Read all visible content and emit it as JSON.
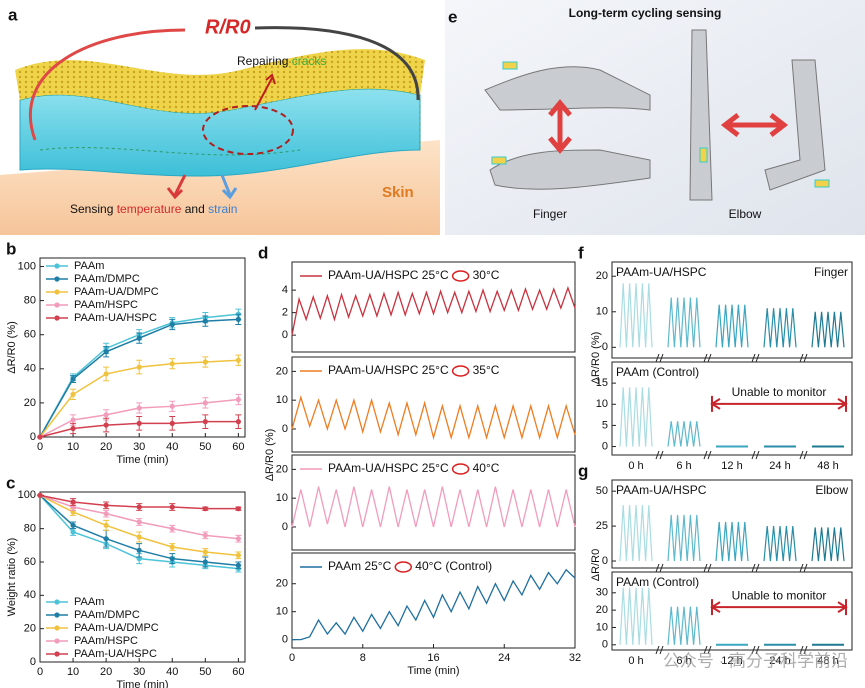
{
  "panel_a": {
    "letter": "a",
    "ratio": "R/R0",
    "repair": [
      "Repairing ",
      "cracks"
    ],
    "sensing": [
      "Sensing ",
      "temperature",
      " and ",
      "strain"
    ],
    "skin": "Skin"
  },
  "panel_e": {
    "letter": "e",
    "title": "Long-term cycling sensing",
    "finger": "Finger",
    "elbow": "Elbow"
  },
  "watermark": "公众号 · 高分子科学前沿",
  "chart_data": [
    {
      "type": "line",
      "panel": "b",
      "xlabel": "Time (min)",
      "ylabel": "ΔR/R0 (%)",
      "x": [
        0,
        10,
        20,
        30,
        40,
        50,
        60
      ],
      "xlim": [
        0,
        62
      ],
      "xticks": [
        0,
        10,
        20,
        30,
        40,
        50,
        60
      ],
      "ylim": [
        0,
        105
      ],
      "yticks": [
        0,
        20,
        40,
        60,
        80,
        100
      ],
      "legend": "upper left",
      "series": [
        {
          "name": "PAAm",
          "color": "#4cc3d6",
          "values": [
            0,
            35,
            52,
            60,
            67,
            70,
            72
          ],
          "errors": [
            0,
            2,
            3,
            3,
            3,
            3,
            3
          ]
        },
        {
          "name": "PAAm/DMPC",
          "color": "#1f7ea6",
          "values": [
            0,
            34,
            50,
            58,
            66,
            68,
            69
          ],
          "errors": [
            0,
            2,
            3,
            3,
            3,
            3,
            3
          ]
        },
        {
          "name": "PAAm-UA/DMPC",
          "color": "#f0c23e",
          "values": [
            0,
            25,
            37,
            41,
            43,
            44,
            45
          ],
          "errors": [
            0,
            3,
            4,
            4,
            3,
            3,
            3
          ]
        },
        {
          "name": "PAAm/HSPC",
          "color": "#f29cbc",
          "values": [
            0,
            10,
            13,
            17,
            18,
            20,
            22
          ],
          "errors": [
            0,
            3,
            3,
            3,
            3,
            3,
            3
          ]
        },
        {
          "name": "PAAm-UA/HSPC",
          "color": "#d2404f",
          "values": [
            0,
            5,
            7,
            8,
            8,
            9,
            9
          ],
          "errors": [
            0,
            3,
            4,
            4,
            4,
            4,
            4
          ]
        }
      ]
    },
    {
      "type": "line",
      "panel": "c",
      "xlabel": "Time (min)",
      "ylabel": "Weight ratio (%)",
      "x": [
        0,
        10,
        20,
        30,
        40,
        50,
        60
      ],
      "xlim": [
        0,
        62
      ],
      "xticks": [
        0,
        10,
        20,
        30,
        40,
        50,
        60
      ],
      "ylim": [
        0,
        102
      ],
      "yticks": [
        0,
        20,
        40,
        60,
        80,
        100
      ],
      "legend": "lower left",
      "series": [
        {
          "name": "PAAm",
          "color": "#4cc3d6",
          "values": [
            100,
            78,
            71,
            62,
            60,
            58,
            56
          ],
          "errors": [
            0,
            2,
            3,
            3,
            3,
            2,
            2
          ]
        },
        {
          "name": "PAAm/DMPC",
          "color": "#1f7ea6",
          "values": [
            100,
            82,
            74,
            67,
            62,
            60,
            58
          ],
          "errors": [
            0,
            2,
            5,
            4,
            3,
            3,
            2
          ]
        },
        {
          "name": "PAAm-UA/DMPC",
          "color": "#f0c23e",
          "values": [
            100,
            90,
            82,
            75,
            69,
            66,
            64
          ],
          "errors": [
            0,
            2,
            3,
            3,
            2,
            2,
            2
          ]
        },
        {
          "name": "PAAm/HSPC",
          "color": "#f29cbc",
          "values": [
            100,
            93,
            89,
            84,
            80,
            76,
            74
          ],
          "errors": [
            0,
            2,
            2,
            2,
            2,
            2,
            2
          ]
        },
        {
          "name": "PAAm-UA/HSPC",
          "color": "#d2404f",
          "values": [
            100,
            96,
            94,
            93,
            93,
            92,
            92
          ],
          "errors": [
            0,
            2,
            2,
            2,
            2,
            1,
            1
          ]
        }
      ]
    },
    {
      "type": "line",
      "panel": "d",
      "ylabel": "ΔR/R0 (%)",
      "xlim": [
        0,
        32
      ],
      "ylim": [
        -1.5,
        6.5
      ],
      "yticks": [
        0,
        2,
        4
      ],
      "annotation": "30°C",
      "x": [
        0,
        0.8,
        1.6,
        2.4,
        3.2,
        4,
        4.8,
        5.6,
        6.4,
        7.2,
        8,
        8.8,
        9.6,
        10.4,
        11.2,
        12,
        12.8,
        13.6,
        14.4,
        15.2,
        16,
        16.8,
        17.6,
        18.4,
        19.2,
        20,
        20.8,
        21.6,
        22.4,
        23.2,
        24,
        24.8,
        25.6,
        26.4,
        27.2,
        28,
        28.8,
        29.6,
        30.4,
        31.2,
        32
      ],
      "series": [
        {
          "name": "PAAm-UA/HSPC 25°C",
          "color": "#c8333f",
          "values": [
            0,
            3.2,
            1.4,
            3.4,
            1.5,
            3.5,
            1.4,
            3.6,
            1.6,
            3.5,
            1.7,
            3.6,
            1.7,
            3.7,
            1.8,
            3.8,
            1.8,
            3.7,
            1.9,
            3.8,
            1.9,
            3.9,
            2,
            3.8,
            2,
            3.9,
            2.1,
            4,
            2.1,
            3.9,
            2.2,
            4,
            2.2,
            4.1,
            2.3,
            4,
            2.3,
            4.1,
            2.4,
            4.2,
            2.4
          ]
        }
      ]
    },
    {
      "type": "line",
      "xlim": [
        0,
        32
      ],
      "ylim": [
        -8,
        25
      ],
      "yticks": [
        0,
        10,
        20
      ],
      "annotation": "35°C",
      "x": [
        0,
        1,
        2,
        3,
        4,
        5,
        6,
        7,
        8,
        9,
        10,
        11,
        12,
        13,
        14,
        15,
        16,
        17,
        18,
        19,
        20,
        21,
        22,
        23,
        24,
        25,
        26,
        27,
        28,
        29,
        30,
        31,
        32
      ],
      "series": [
        {
          "name": "PAAm-UA/HSPC 25°C",
          "color": "#ee7d22",
          "values": [
            0,
            11,
            1,
            10,
            0,
            10,
            0,
            10,
            -1,
            10,
            -1,
            9,
            -2,
            9,
            -2,
            9,
            -3,
            8,
            -3,
            8,
            -3,
            8,
            -3,
            8,
            -3,
            8,
            -3,
            8,
            -3,
            8,
            -3,
            8,
            -2
          ]
        }
      ]
    },
    {
      "type": "line",
      "xlim": [
        0,
        32
      ],
      "ylim": [
        -8,
        25
      ],
      "yticks": [
        0,
        10,
        20
      ],
      "annotation": "40°C",
      "x": [
        0,
        1,
        2,
        3,
        4,
        5,
        6,
        7,
        8,
        9,
        10,
        11,
        12,
        13,
        14,
        15,
        16,
        17,
        18,
        19,
        20,
        21,
        22,
        23,
        24,
        25,
        26,
        27,
        28,
        29,
        30,
        31,
        32
      ],
      "series": [
        {
          "name": "PAAm-UA/HSPC 25°C",
          "color": "#f29cbc",
          "values": [
            0,
            13,
            0,
            14,
            1,
            13,
            0,
            14,
            0,
            13,
            0,
            14,
            0,
            13,
            0,
            13,
            0,
            14,
            0,
            13,
            0,
            13,
            0,
            14,
            0,
            13,
            0,
            13,
            0,
            13,
            0,
            13,
            0
          ]
        }
      ]
    },
    {
      "type": "line",
      "xlabel": "Time (min)",
      "xlim": [
        0,
        32
      ],
      "xticks": [
        0,
        8,
        16,
        24,
        32
      ],
      "ylim": [
        -3,
        31
      ],
      "yticks": [
        0,
        10,
        20
      ],
      "annotation": "40°C (Control)",
      "x": [
        0,
        1,
        2,
        3,
        4,
        5,
        6,
        7,
        8,
        9,
        10,
        11,
        12,
        13,
        14,
        15,
        16,
        17,
        18,
        19,
        20,
        21,
        22,
        23,
        24,
        25,
        26,
        27,
        28,
        29,
        30,
        31,
        32
      ],
      "series": [
        {
          "name": "PAAm 25°C",
          "color": "#1f6fa0",
          "values": [
            0,
            0,
            1,
            7,
            2,
            6,
            2,
            8,
            3,
            9,
            4,
            10,
            5,
            12,
            7,
            14,
            8,
            16,
            10,
            17,
            11,
            19,
            13,
            20,
            14,
            21,
            16,
            23,
            18,
            24,
            20,
            25,
            22
          ]
        }
      ]
    },
    {
      "type": "oscillation",
      "panel": "f",
      "ylabel": "ΔR/R0 (%)",
      "label": "PAAm-UA/HSPC",
      "corner": "Finger",
      "ylim": [
        -3,
        24
      ],
      "yticks": [
        0,
        10,
        20
      ],
      "colors": [
        "#a9dde2",
        "#5fb9cd",
        "#3aa6c0",
        "#2a8ea8",
        "#1e7a92"
      ],
      "peaks": [
        18,
        14,
        12,
        11,
        10
      ]
    },
    {
      "type": "oscillation",
      "label": "PAAm (Control)",
      "note": "Unable to monitor",
      "ylim": [
        -2,
        20
      ],
      "yticks": [
        0,
        5,
        10,
        15
      ],
      "colors": [
        "#a9dde2",
        "#5fb9cd",
        "#3aa6c0",
        "#2a8ea8",
        "#1e7a92"
      ],
      "peaks": [
        14,
        6,
        0,
        0,
        0
      ],
      "categories": [
        "0 h",
        "6 h",
        "12 h",
        "24 h",
        "48 h"
      ]
    },
    {
      "type": "oscillation",
      "panel": "g",
      "ylabel": "ΔR/R0",
      "label": "PAAm-UA/HSPC",
      "corner": "Elbow",
      "ylim": [
        -5,
        58
      ],
      "yticks": [
        0,
        25,
        50
      ],
      "colors": [
        "#a9dde2",
        "#5fb9cd",
        "#3aa6c0",
        "#2a8ea8",
        "#1e7a92"
      ],
      "peaks": [
        40,
        33,
        28,
        25,
        24
      ]
    },
    {
      "type": "oscillation",
      "label": "PAAm (Control)",
      "note": "Unable to monitor",
      "ylim": [
        -3,
        42
      ],
      "yticks": [
        0,
        10,
        20,
        30
      ],
      "colors": [
        "#a9dde2",
        "#5fb9cd",
        "#3aa6c0",
        "#2a8ea8",
        "#1e7a92"
      ],
      "peaks": [
        33,
        22,
        0,
        0,
        0
      ],
      "categories": [
        "0 h",
        "6 h",
        "12 h",
        "24 h",
        "48 h"
      ]
    }
  ]
}
